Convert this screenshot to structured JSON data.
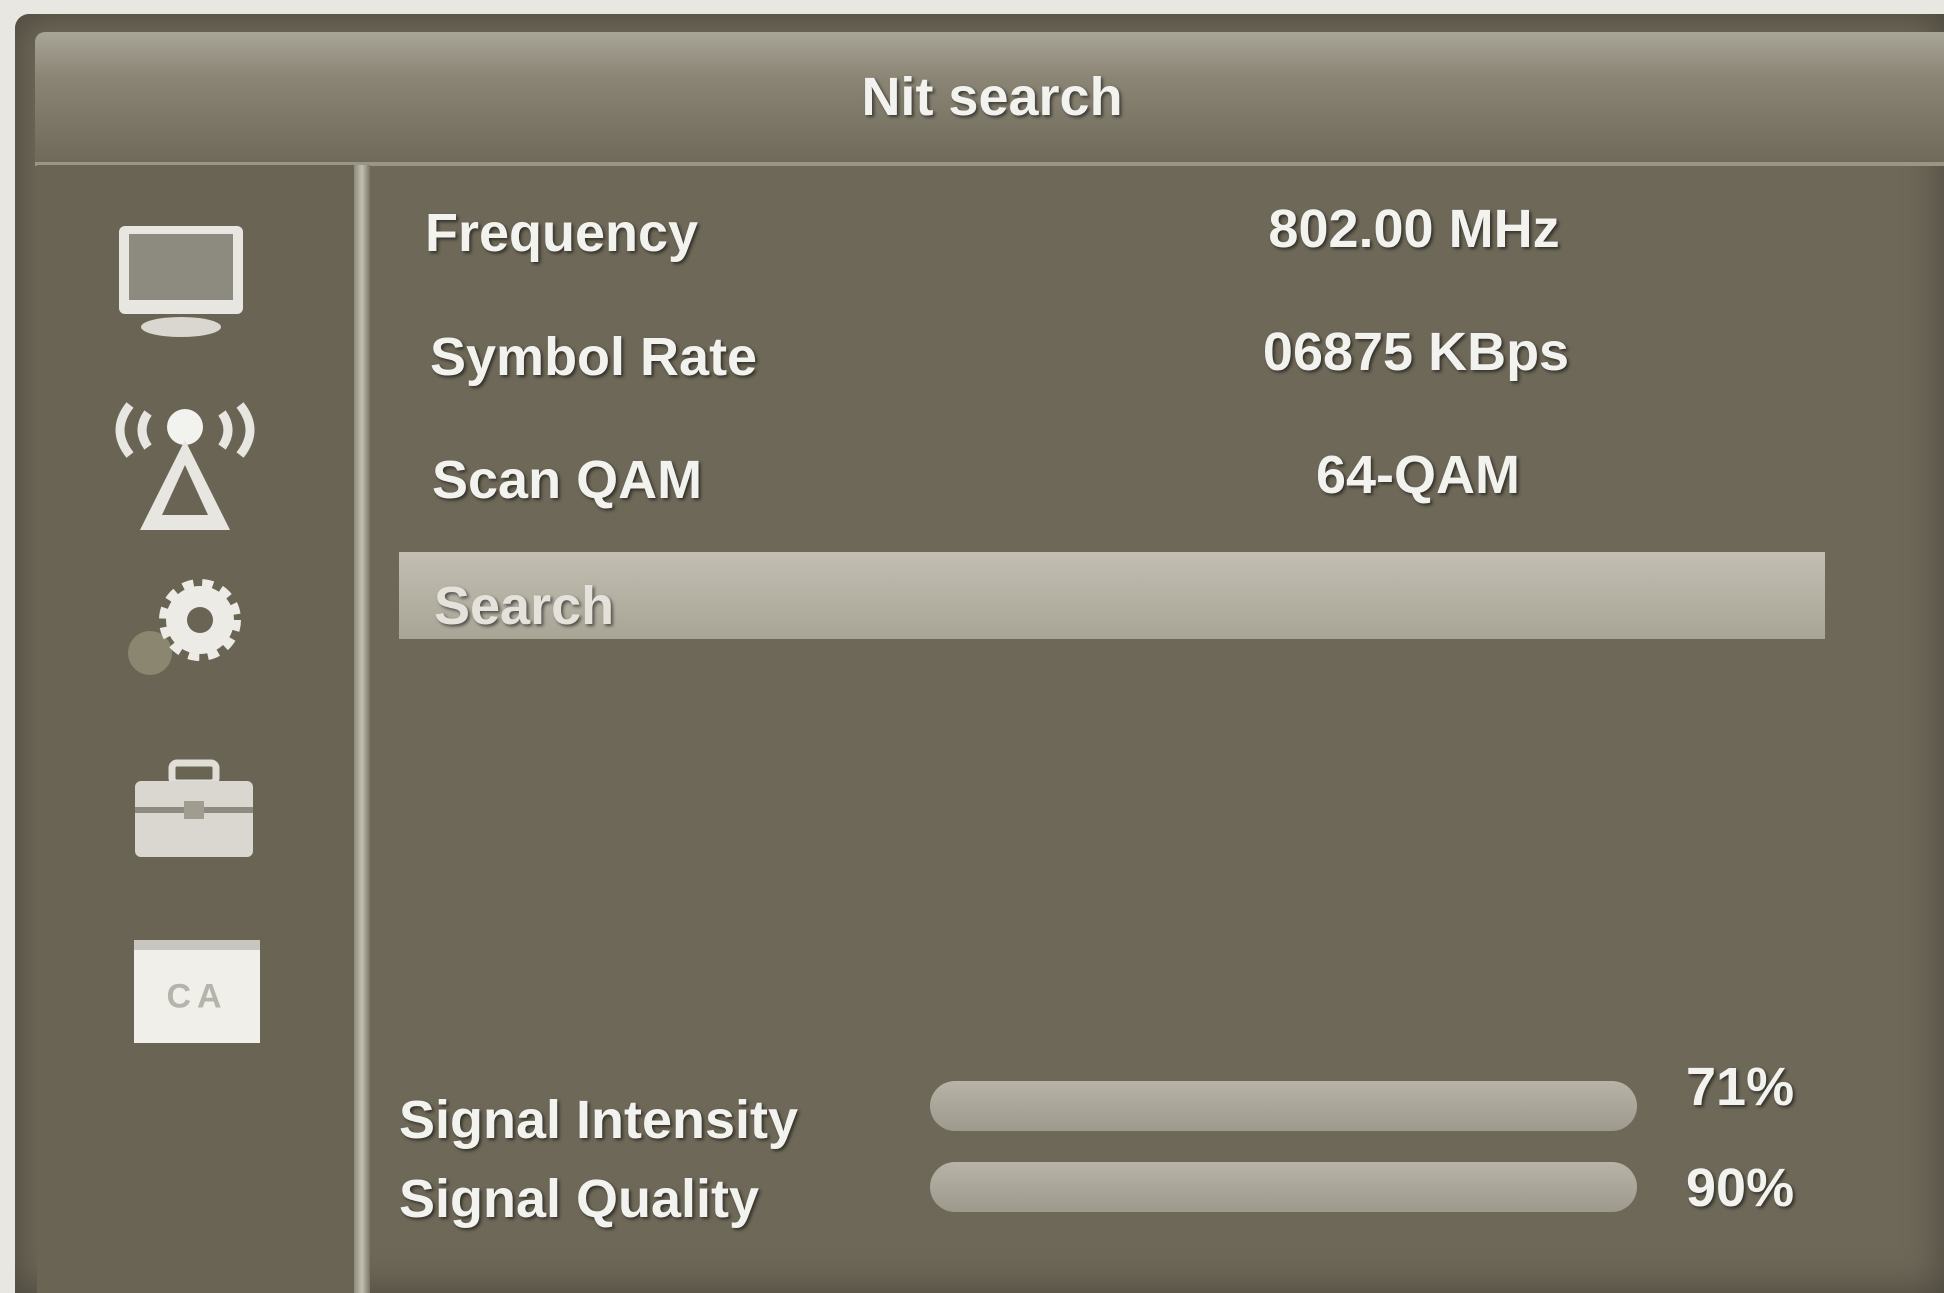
{
  "header": {
    "title": "Nit search"
  },
  "settings": [
    {
      "label": "Frequency",
      "value": "802.00 MHz"
    },
    {
      "label": "Symbol Rate",
      "value": "06875 KBps"
    },
    {
      "label": "Scan QAM",
      "value": "64-QAM"
    }
  ],
  "action": {
    "label": "Search"
  },
  "signal": [
    {
      "label": "Signal Intensity",
      "value": "71%"
    },
    {
      "label": "Signal Quality",
      "value": "90%"
    }
  ],
  "sidebar": {
    "ca_label": "CA"
  }
}
